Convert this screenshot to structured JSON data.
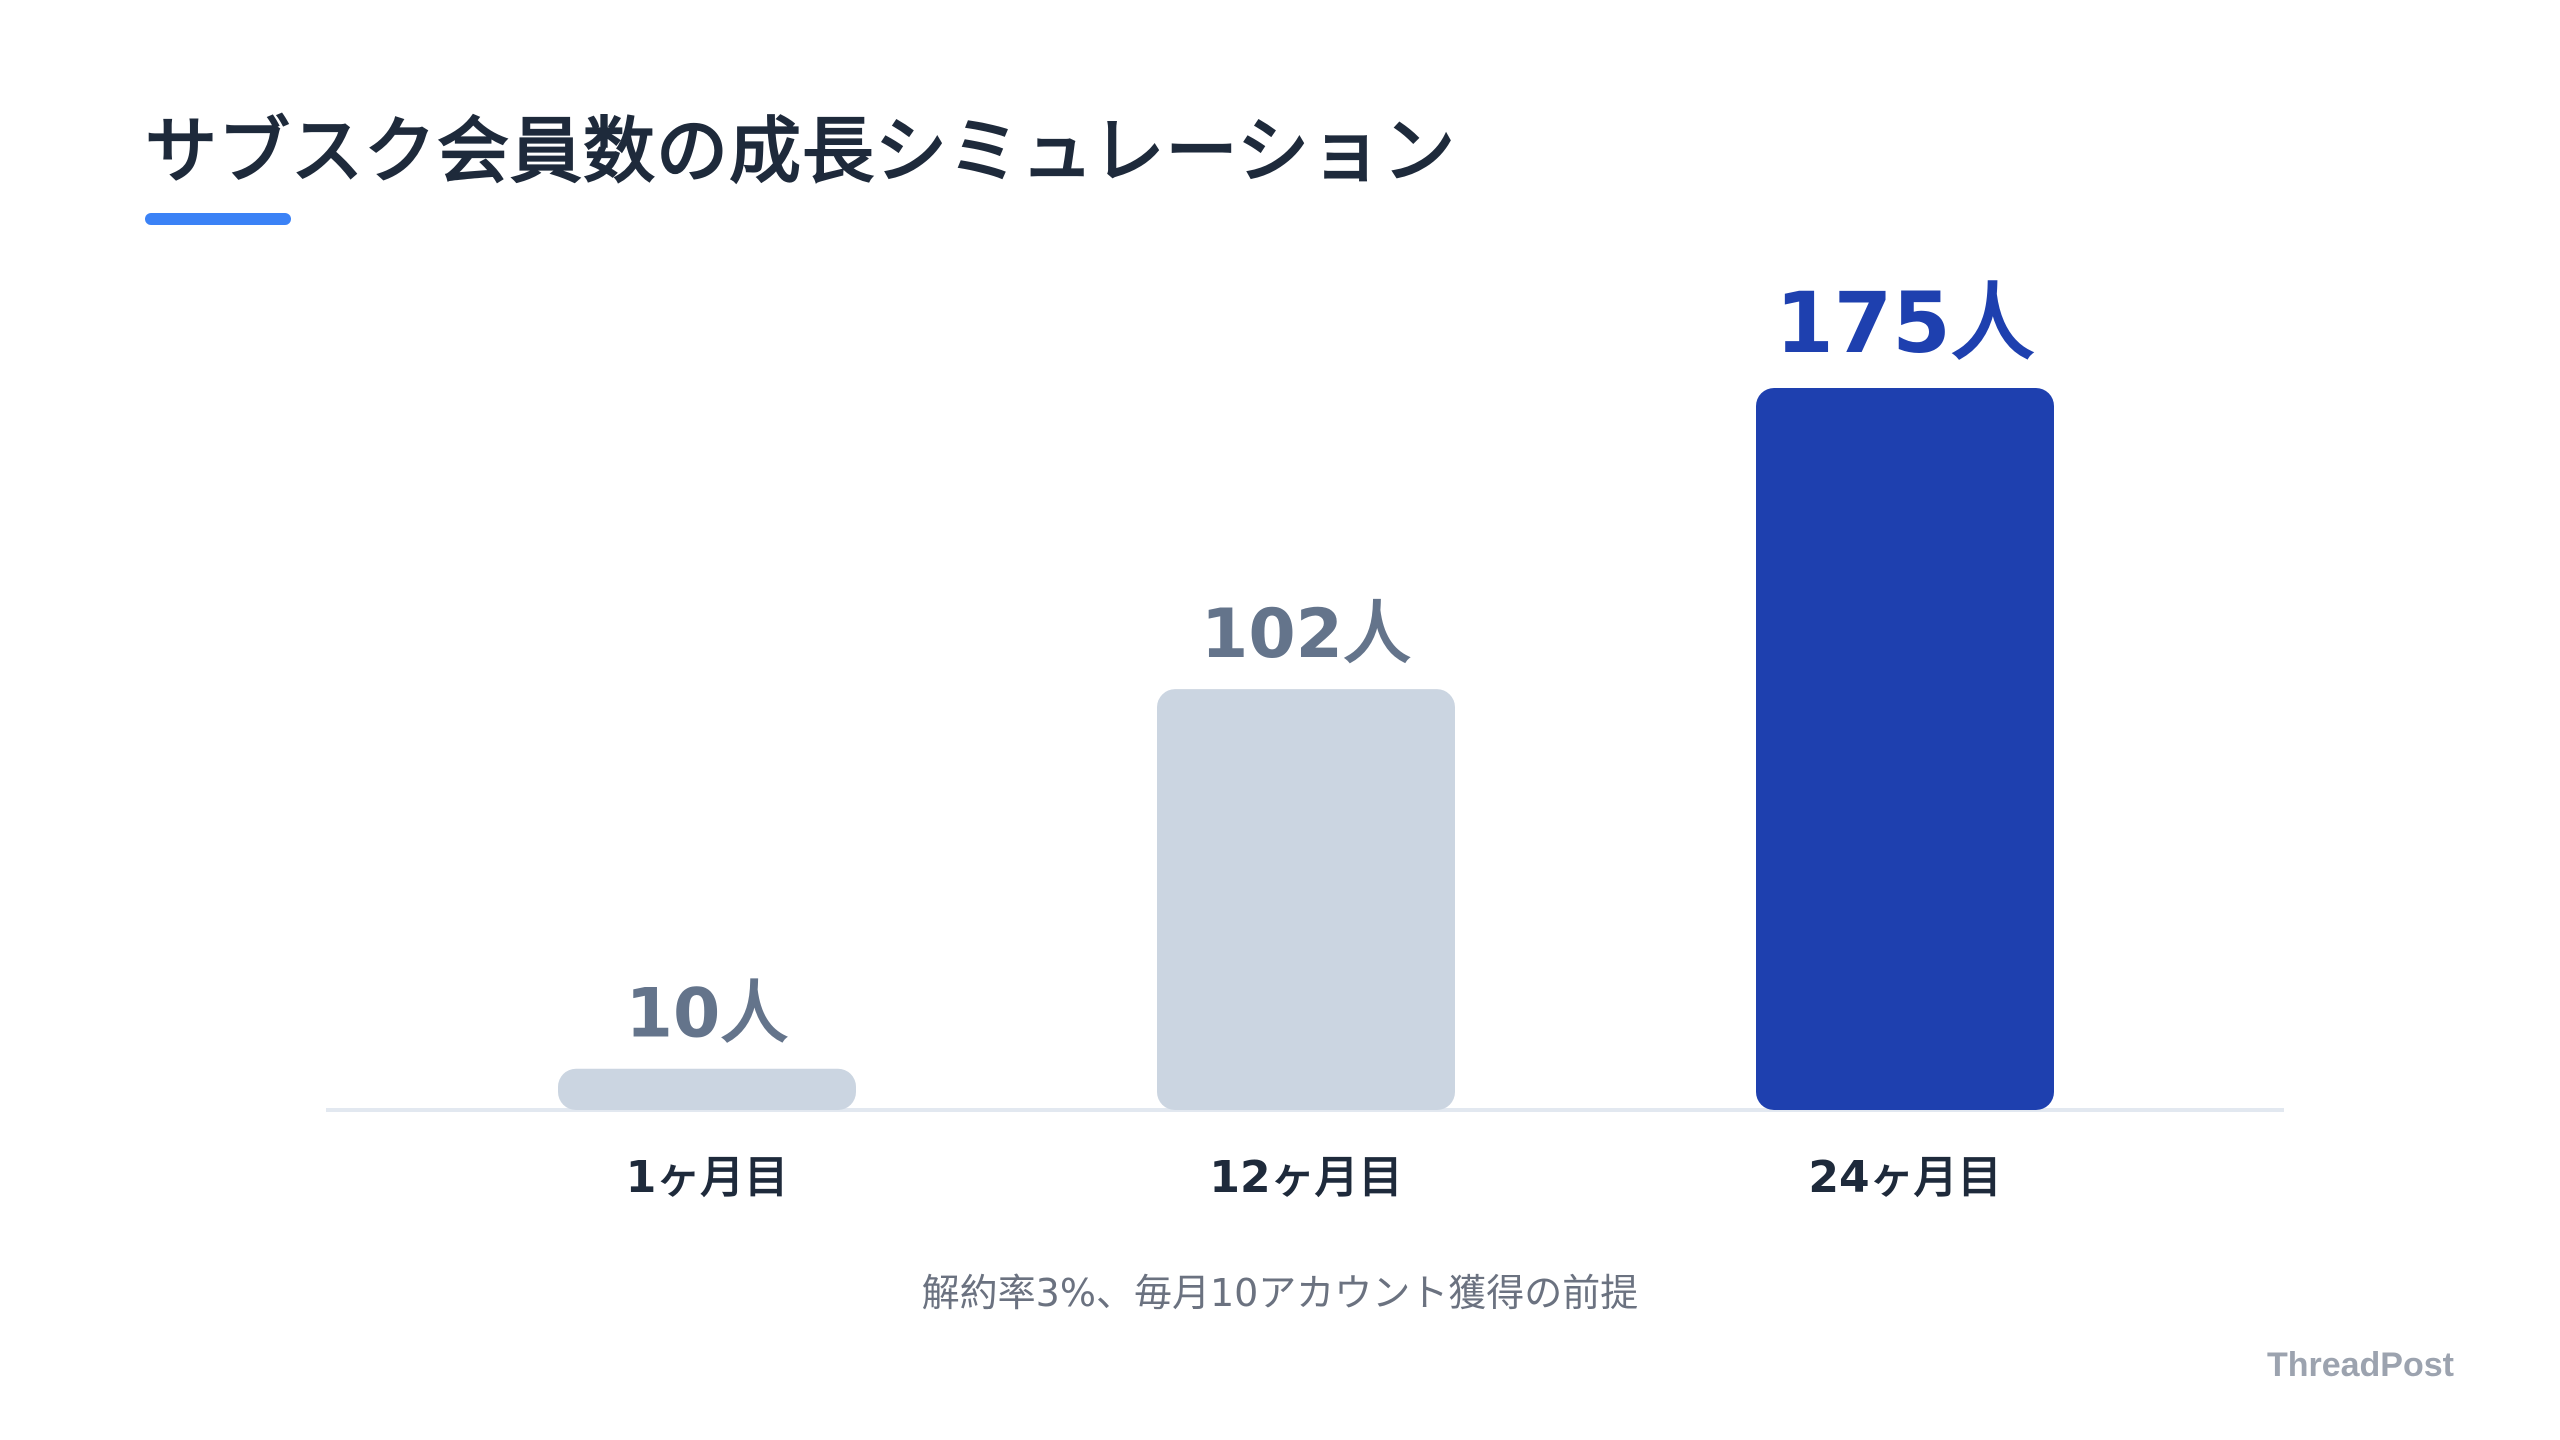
{
  "title": "サブスク会員数の成長シミュレーション",
  "note": "解約率3%、毎月10アカウント獲得の前提",
  "brand": "ThreadPost",
  "colors": {
    "title": "#1e2a3b",
    "accent": "#3b82f6",
    "bar_muted": "#cbd5e1",
    "bar_highlight": "#1e40af",
    "label_muted": "#64748b",
    "label_highlight": "#1e40af",
    "baseline": "#e2e8f0"
  },
  "chart_data": {
    "type": "bar",
    "categories": [
      "1ヶ月目",
      "12ヶ月目",
      "24ヶ月目"
    ],
    "values": [
      10,
      102,
      175
    ],
    "value_labels": [
      "10人",
      "102人",
      "175人"
    ],
    "highlight_index": 2,
    "ylim": [
      0,
      175
    ],
    "grid": false,
    "legend": "none"
  }
}
